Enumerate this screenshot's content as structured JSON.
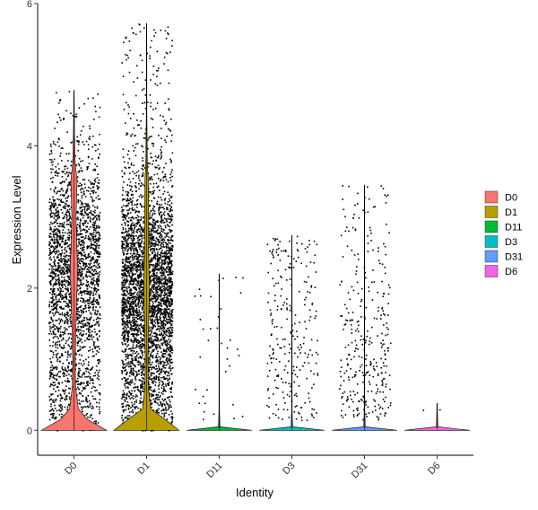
{
  "chart_data": {
    "type": "violin",
    "xlabel": "Identity",
    "ylabel": "Expression Level",
    "ylim": [
      -0.35,
      6.0
    ],
    "yticks": [
      0,
      2,
      4,
      6
    ],
    "legend_position": "right",
    "categories": [
      "D0",
      "D1",
      "D11",
      "D3",
      "D31",
      "D6"
    ],
    "colors": [
      "#F8766D",
      "#B79F00",
      "#00BA38",
      "#00BFC4",
      "#619CFF",
      "#F564E3"
    ],
    "series": [
      {
        "name": "D0",
        "max": 4.78,
        "zero_fraction": 0.33,
        "center": 2.3,
        "spread": 0.75,
        "density_profile": [
          [
            0,
            0.95
          ],
          [
            0.15,
            0.4
          ],
          [
            0.3,
            0.13
          ],
          [
            0.6,
            0.05
          ],
          [
            1.0,
            0.04
          ],
          [
            1.5,
            0.06
          ],
          [
            2.0,
            0.09
          ],
          [
            2.3,
            0.11
          ],
          [
            2.6,
            0.08
          ],
          [
            3.0,
            0.06
          ],
          [
            3.5,
            0.09
          ],
          [
            3.8,
            0.03
          ],
          [
            4.2,
            0.015
          ],
          [
            4.78,
            0.005
          ]
        ]
      },
      {
        "name": "D1",
        "max": 5.72,
        "zero_fraction": 0.28,
        "center": 2.0,
        "spread": 0.75,
        "density_profile": [
          [
            0,
            0.95
          ],
          [
            0.15,
            0.55
          ],
          [
            0.3,
            0.12
          ],
          [
            0.6,
            0.05
          ],
          [
            1.0,
            0.04
          ],
          [
            1.5,
            0.06
          ],
          [
            2.0,
            0.08
          ],
          [
            2.5,
            0.06
          ],
          [
            3.0,
            0.06
          ],
          [
            3.5,
            0.05
          ],
          [
            3.8,
            0.02
          ],
          [
            4.5,
            0.008
          ],
          [
            5.72,
            0.004
          ]
        ]
      },
      {
        "name": "D11",
        "max": 2.2,
        "zero_fraction": 0.99,
        "center": 1.0,
        "spread": 0.6,
        "density_profile": [
          [
            0,
            0.95
          ],
          [
            0.05,
            0.02
          ],
          [
            0.3,
            0.008
          ],
          [
            2.2,
            0.004
          ]
        ]
      },
      {
        "name": "D3",
        "max": 2.74,
        "zero_fraction": 0.97,
        "center": 1.2,
        "spread": 0.6,
        "density_profile": [
          [
            0,
            0.95
          ],
          [
            0.05,
            0.02
          ],
          [
            0.3,
            0.008
          ],
          [
            2.74,
            0.004
          ]
        ]
      },
      {
        "name": "D31",
        "max": 3.45,
        "zero_fraction": 0.96,
        "center": 1.4,
        "spread": 0.8,
        "density_profile": [
          [
            0,
            0.95
          ],
          [
            0.05,
            0.02
          ],
          [
            0.3,
            0.008
          ],
          [
            3.45,
            0.004
          ]
        ]
      },
      {
        "name": "D6",
        "max": 0.38,
        "zero_fraction": 0.999,
        "center": 0.2,
        "spread": 0.1,
        "density_profile": [
          [
            0,
            0.95
          ],
          [
            0.05,
            0.02
          ],
          [
            0.38,
            0.004
          ]
        ]
      }
    ],
    "jitter_point_counts": [
      2600,
      3900,
      36,
      260,
      330,
      2
    ]
  }
}
